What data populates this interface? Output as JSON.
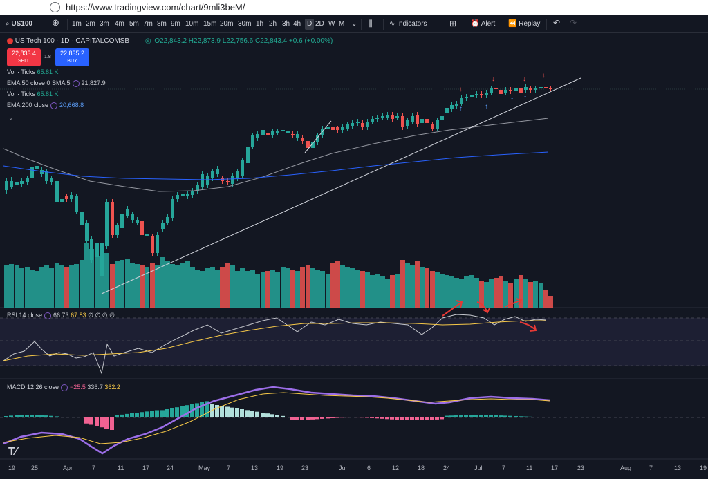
{
  "browser": {
    "url": "https://www.tradingview.com/chart/9mli3beM/"
  },
  "toolbar": {
    "symbol": "US100",
    "intervals": [
      "1m",
      "2m",
      "3m",
      "4m",
      "5m",
      "7m",
      "8m",
      "9m",
      "10m",
      "15m",
      "20m",
      "30m",
      "1h",
      "2h",
      "3h",
      "4h",
      "D",
      "2D",
      "W",
      "M"
    ],
    "selected_interval": "D",
    "indicators_label": "Indicators",
    "alert_label": "Alert",
    "replay_label": "Replay"
  },
  "legend": {
    "title": "US Tech 100 · 1D · CAPITALCOMSB",
    "ohlc": "O22,843.2 H22,873.9 L22,756.6 C22,843.4 +0.6 (+0.00%)",
    "sell_price": "22,833.4",
    "sell_label": "SELL",
    "spread": "1.8",
    "buy_price": "22,835.2",
    "buy_label": "BUY",
    "vol1_label": "Vol · Ticks",
    "vol1_value": "65.81 K",
    "ema50_label": "EMA 50 close 0 SMA 5",
    "ema50_value": "21,827.9",
    "vol2_label": "Vol · Ticks",
    "vol2_value": "65.81 K",
    "ema200_label": "EMA 200 close",
    "ema200_value": "20,668.8"
  },
  "rsi": {
    "label": "RSI 14 close",
    "v1": "66.73",
    "v2": "67.83",
    "rest": "∅ ∅ ∅ ∅"
  },
  "macd": {
    "label": "MACD 12 26 close",
    "hist": "−25.5",
    "macd": "336.7",
    "signal": "362.2"
  },
  "xaxis": [
    "19",
    "25",
    "Apr",
    "7",
    "11",
    "17",
    "24",
    "May",
    "7",
    "13",
    "19",
    "23",
    "Jun",
    "6",
    "12",
    "18",
    "24",
    "Jul",
    "7",
    "11",
    "17",
    "23",
    "Aug",
    "7",
    "13",
    "19"
  ],
  "colors": {
    "up": "#26a69a",
    "down": "#ef5350",
    "bg": "#131722",
    "ema50": "#9598a1",
    "ema200": "#2962ff"
  }
}
